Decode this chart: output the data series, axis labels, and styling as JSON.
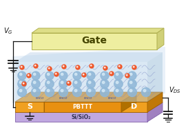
{
  "gate_label": "Gate",
  "gate_color": "#eeeea0",
  "gate_color_top": "#dede88",
  "gate_color_side": "#d0d078",
  "gate_edge_color": "#b0b050",
  "substrate_label": "Si/SiO₂",
  "substrate_color": "#c0a8e0",
  "substrate_color_top": "#b090d0",
  "substrate_color_side": "#a080c0",
  "substrate_edge_color": "#8060a8",
  "source_label": "S",
  "drain_label": "D",
  "channel_label": "PBTTT",
  "electrode_color": "#f0a020",
  "electrode_color_top": "#e09010",
  "electrode_color_side": "#c07808",
  "electrode_edge_color": "#a06000",
  "electrolyte_front": "#c8dff0",
  "electrolyte_top": "#b8d0e8",
  "electrolyte_right": "#a0c0d8",
  "electrolyte_glow": "#d8eeff",
  "sphere_color": "#90b8d8",
  "sphere_highlight": "#dceef8",
  "orange_dot_color": "#f05020",
  "chain_color": "#8090c8",
  "nhco_color": "#2244aa",
  "wire_color": "#111111",
  "bg_color": "#ffffff",
  "vg_text": "V",
  "vg_sub": "G",
  "vds_text": "V",
  "vds_sub": "DS"
}
